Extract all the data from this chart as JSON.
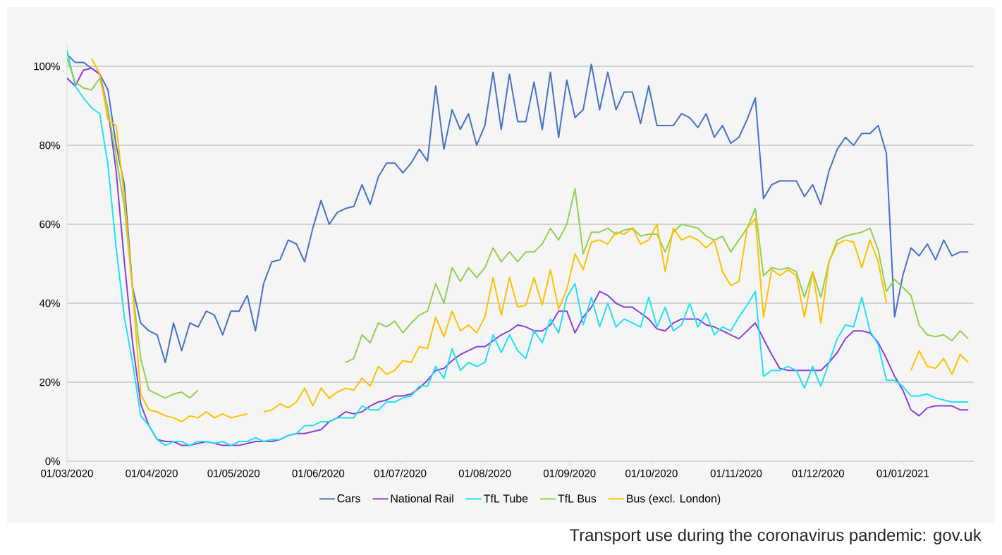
{
  "chart_data": {
    "type": "line",
    "x": [
      "2020-03-01",
      "2020-03-04",
      "2020-03-07",
      "2020-03-10",
      "2020-03-13",
      "2020-03-16",
      "2020-03-19",
      "2020-03-22",
      "2020-03-25",
      "2020-03-28",
      "2020-03-31",
      "2020-04-03",
      "2020-04-06",
      "2020-04-09",
      "2020-04-12",
      "2020-04-15",
      "2020-04-18",
      "2020-04-21",
      "2020-04-24",
      "2020-04-27",
      "2020-04-30",
      "2020-05-03",
      "2020-05-06",
      "2020-05-09",
      "2020-05-12",
      "2020-05-15",
      "2020-05-18",
      "2020-05-21",
      "2020-05-24",
      "2020-05-27",
      "2020-05-30",
      "2020-06-02",
      "2020-06-05",
      "2020-06-08",
      "2020-06-11",
      "2020-06-14",
      "2020-06-17",
      "2020-06-20",
      "2020-06-23",
      "2020-06-26",
      "2020-06-29",
      "2020-07-02",
      "2020-07-05",
      "2020-07-08",
      "2020-07-11",
      "2020-07-14",
      "2020-07-17",
      "2020-07-20",
      "2020-07-23",
      "2020-07-26",
      "2020-07-29",
      "2020-08-01",
      "2020-08-04",
      "2020-08-07",
      "2020-08-10",
      "2020-08-13",
      "2020-08-16",
      "2020-08-19",
      "2020-08-22",
      "2020-08-25",
      "2020-08-28",
      "2020-08-31",
      "2020-09-03",
      "2020-09-06",
      "2020-09-09",
      "2020-09-12",
      "2020-09-15",
      "2020-09-18",
      "2020-09-21",
      "2020-09-24",
      "2020-09-27",
      "2020-09-30",
      "2020-10-03",
      "2020-10-06",
      "2020-10-09",
      "2020-10-12",
      "2020-10-15",
      "2020-10-18",
      "2020-10-21",
      "2020-10-24",
      "2020-10-27",
      "2020-10-30",
      "2020-11-02",
      "2020-11-05",
      "2020-11-08",
      "2020-11-11",
      "2020-11-14",
      "2020-11-17",
      "2020-11-20",
      "2020-11-23",
      "2020-11-26",
      "2020-11-29",
      "2020-12-02",
      "2020-12-05",
      "2020-12-08",
      "2020-12-11",
      "2020-12-14",
      "2020-12-17",
      "2020-12-20",
      "2020-12-23",
      "2020-12-26",
      "2020-12-29",
      "2021-01-01",
      "2021-01-04",
      "2021-01-07",
      "2021-01-10",
      "2021-01-13",
      "2021-01-16",
      "2021-01-19",
      "2021-01-22",
      "2021-01-25"
    ],
    "series": [
      {
        "name": "Cars",
        "color": "#4472c4",
        "values": [
          103,
          101,
          101,
          99.5,
          98,
          94,
          80,
          70,
          44,
          35,
          33,
          32,
          25,
          35,
          28,
          35,
          34,
          38,
          37,
          32,
          38,
          38,
          42,
          33,
          45,
          50.5,
          51,
          56,
          55,
          50.5,
          59,
          66,
          60,
          63,
          64,
          64.5,
          70,
          65,
          72,
          75.5,
          75.5,
          73,
          75.5,
          79,
          76,
          95,
          79,
          89,
          84,
          88,
          80,
          85,
          98.5,
          84,
          98,
          86,
          86,
          96,
          84,
          98.5,
          82,
          96.5,
          87,
          89,
          100.5,
          89,
          98.5,
          89,
          93.5,
          93.5,
          85.5,
          95,
          85,
          85,
          85,
          88,
          87,
          84.5,
          88,
          82,
          85,
          80.5,
          82,
          86.5,
          92,
          66.5,
          70,
          71,
          71,
          71,
          67,
          70,
          65,
          73.5,
          79,
          82,
          80,
          83,
          83,
          85,
          78,
          36.5,
          47,
          54,
          52,
          55,
          51,
          56,
          52,
          53,
          53
        ]
      },
      {
        "name": "National Rail",
        "color": "#8a3fd6",
        "values": [
          97,
          95,
          99,
          99.5,
          98,
          89,
          73.5,
          50.5,
          30,
          14.5,
          9,
          5.5,
          5,
          5,
          4,
          4,
          4.5,
          5,
          4.5,
          4,
          4,
          4,
          4.5,
          5,
          5,
          5,
          5.5,
          6.5,
          7,
          7,
          7.5,
          8,
          10,
          11,
          12.5,
          12,
          12.5,
          14,
          15,
          15.5,
          16.5,
          16.5,
          17,
          18.5,
          20.5,
          23,
          23.5,
          25.5,
          27,
          28,
          29,
          29,
          30.5,
          32,
          33,
          34.5,
          34,
          33,
          33,
          34.5,
          38,
          38,
          32.5,
          36.5,
          39,
          43,
          42,
          40,
          39,
          39,
          37.5,
          36,
          33.5,
          33,
          35,
          36,
          36,
          36,
          34.5,
          34,
          33,
          32,
          31,
          33,
          35,
          31,
          27,
          23.5,
          23,
          23,
          23,
          23,
          23,
          25,
          27.5,
          31,
          33,
          33,
          32.5,
          30,
          26,
          21.5,
          18,
          13,
          11.5,
          13.5,
          14,
          14,
          14,
          13,
          13
        ]
      },
      {
        "name": "TfL Tube",
        "color": "#1ee3f8",
        "values": [
          104,
          95,
          92,
          89.5,
          88,
          75,
          54,
          36.5,
          25,
          11.5,
          9,
          5.5,
          4,
          5,
          5,
          4,
          5,
          5,
          4.5,
          5,
          4,
          5,
          5,
          6,
          5,
          5.5,
          5.5,
          6.5,
          7,
          9,
          9,
          10,
          10,
          11,
          11,
          11,
          14,
          13,
          13,
          15,
          15,
          16,
          16.5,
          19,
          19,
          24,
          21,
          28.5,
          23,
          25,
          24,
          25,
          32,
          27.5,
          32,
          28,
          26,
          33,
          30,
          36,
          32.5,
          41.5,
          45,
          34.5,
          41.5,
          34,
          40,
          34,
          36,
          35,
          34,
          41.5,
          34,
          39,
          33,
          34.5,
          40,
          34,
          37.5,
          32,
          34,
          33,
          36.5,
          39.5,
          43,
          21.5,
          23,
          23,
          24,
          23,
          18.5,
          24,
          19,
          25,
          31,
          34.5,
          34,
          41.5,
          33,
          29.5,
          20.5,
          20.5,
          19,
          16.5,
          16.5,
          17,
          16,
          15.5,
          15,
          15,
          15
        ]
      },
      {
        "name": "TfL Bus",
        "color": "#92d050",
        "values": [
          102,
          96,
          94.5,
          94,
          97,
          89,
          77,
          64.5,
          43.5,
          26,
          18,
          17,
          16,
          17,
          17.5,
          16,
          18,
          null,
          null,
          null,
          null,
          null,
          null,
          null,
          null,
          null,
          null,
          null,
          null,
          null,
          null,
          null,
          null,
          null,
          25,
          26,
          32,
          30,
          35,
          34,
          35.5,
          32.5,
          35,
          37,
          38,
          45,
          40,
          49,
          45.5,
          49,
          46.5,
          49,
          54,
          50.5,
          53,
          50.5,
          53,
          53,
          55,
          59,
          56,
          60,
          69,
          52.5,
          58,
          58,
          59,
          57.5,
          58.5,
          59,
          57,
          57.5,
          57.5,
          53,
          58,
          60,
          59.5,
          59,
          57,
          56,
          57,
          53,
          56,
          59,
          64,
          47,
          49,
          48.5,
          49,
          48,
          41.5,
          48,
          41.5,
          50.5,
          56,
          57,
          57.5,
          58,
          59,
          53.5,
          43,
          46,
          44,
          42,
          34.5,
          32,
          31.5,
          32,
          30.5,
          33,
          31
        ]
      },
      {
        "name": "Bus (excl. London)",
        "color": "#ffc000",
        "values": [
          null,
          null,
          null,
          102,
          98,
          86.5,
          85,
          67,
          43.5,
          17,
          13,
          12.5,
          11.5,
          11,
          10,
          11.5,
          11,
          12.5,
          11,
          12,
          11,
          11.5,
          12,
          null,
          12.5,
          13,
          14.5,
          13.5,
          15,
          18.5,
          14,
          18.5,
          16,
          17.5,
          18.5,
          18,
          21,
          19,
          24,
          22,
          23,
          25.5,
          25,
          29,
          28.5,
          36.5,
          31.5,
          38,
          33,
          34.5,
          32.5,
          36.5,
          46.5,
          37,
          46.5,
          39,
          39.5,
          46.5,
          39.5,
          48.5,
          38.5,
          43.5,
          52.5,
          48.5,
          55.5,
          56,
          55,
          58,
          57.5,
          59,
          55,
          56,
          60,
          48,
          59,
          56,
          57,
          56,
          54,
          56,
          48,
          44.5,
          45.5,
          59,
          61.5,
          36.5,
          48.5,
          47,
          48.5,
          47,
          36.5,
          48,
          35,
          50.5,
          55,
          56,
          55.5,
          49,
          56,
          50.5,
          40,
          null,
          null,
          23,
          28,
          24,
          23.5,
          26,
          22,
          27,
          25
        ]
      }
    ],
    "xlim": [
      "2020-03-01",
      "2021-01-27"
    ],
    "xticks": [
      {
        "value": "2020-03-01",
        "label": "01/03/2020"
      },
      {
        "value": "2020-04-01",
        "label": "01/04/2020"
      },
      {
        "value": "2020-05-01",
        "label": "01/05/2020"
      },
      {
        "value": "2020-06-01",
        "label": "01/06/2020"
      },
      {
        "value": "2020-07-01",
        "label": "01/07/2020"
      },
      {
        "value": "2020-08-01",
        "label": "01/08/2020"
      },
      {
        "value": "2020-09-01",
        "label": "01/09/2020"
      },
      {
        "value": "2020-10-01",
        "label": "01/10/2020"
      },
      {
        "value": "2020-11-01",
        "label": "01/11/2020"
      },
      {
        "value": "2020-12-01",
        "label": "01/12/2020"
      },
      {
        "value": "2021-01-01",
        "label": "01/01/2021"
      }
    ],
    "ylim": [
      0,
      106
    ],
    "yticks": [
      {
        "value": 0,
        "label": "0%"
      },
      {
        "value": 20,
        "label": "20%"
      },
      {
        "value": 40,
        "label": "40%"
      },
      {
        "value": 60,
        "label": "60%"
      },
      {
        "value": 80,
        "label": "80%"
      },
      {
        "value": 100,
        "label": "100%"
      }
    ],
    "grid": "y",
    "legend": "bottom",
    "marker": "none",
    "line_style": "solid",
    "annotations": [
      "Transport use during the coronavirus pandemic: gov.uk"
    ]
  }
}
